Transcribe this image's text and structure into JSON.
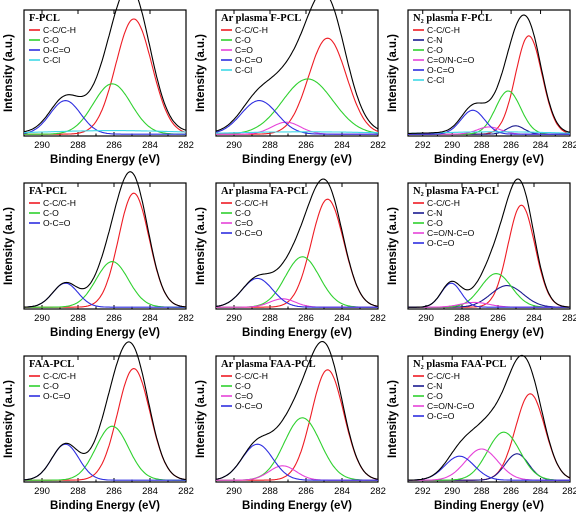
{
  "colors": {
    "total": "#000000",
    "C-C/C-H": "#ee1c24",
    "C-N": "#1a1a8f",
    "C-O": "#2fd12f",
    "C=O": "#e642d8",
    "C=O/N-C=O": "#e642d8",
    "O-C=O": "#2f2fe0",
    "C-Cl": "#3fd9e6"
  },
  "chart_data": [
    {
      "type": "line",
      "title": "F-PCL",
      "xlabel": "Binding Energy (eV)",
      "ylabel": "Intensity (a.u.)",
      "xlim": [
        291,
        282
      ],
      "xticks": [
        290,
        288,
        286,
        284,
        282
      ],
      "ylim": [
        0,
        1
      ],
      "legend_position": "top-left",
      "series": [
        {
          "name": "C-C/C-H",
          "center": 284.9,
          "height": 0.96,
          "width": 1.0
        },
        {
          "name": "C-O",
          "center": 286.1,
          "height": 0.42,
          "width": 1.05
        },
        {
          "name": "O-C=O",
          "center": 288.7,
          "height": 0.28,
          "width": 0.85
        },
        {
          "name": "C-Cl",
          "center": 286.0,
          "height": 0.03,
          "width": 4.0
        }
      ]
    },
    {
      "type": "line",
      "title": "Ar plasma F-PCL",
      "xlabel": "Binding Energy (eV)",
      "ylabel": "Intensity (a.u.)",
      "xlim": [
        291,
        282
      ],
      "xticks": [
        290,
        288,
        286,
        284,
        282
      ],
      "ylim": [
        0,
        1
      ],
      "legend_position": "top-left",
      "series": [
        {
          "name": "C-C/C-H",
          "center": 284.8,
          "height": 0.8,
          "width": 1.05
        },
        {
          "name": "C-O",
          "center": 285.9,
          "height": 0.46,
          "width": 1.4
        },
        {
          "name": "C=O",
          "center": 287.1,
          "height": 0.1,
          "width": 0.8
        },
        {
          "name": "O-C=O",
          "center": 288.6,
          "height": 0.28,
          "width": 1.0
        },
        {
          "name": "C-Cl",
          "center": 286.0,
          "height": 0.02,
          "width": 4.0
        }
      ]
    },
    {
      "type": "line",
      "title": "N₂ plasma F-PCL",
      "xlabel": "Binding Energy (eV)",
      "ylabel": "Intensity (a.u.)",
      "xlim": [
        293,
        282
      ],
      "xticks": [
        292,
        290,
        288,
        286,
        284,
        282
      ],
      "ylim": [
        0,
        1
      ],
      "legend_position": "top-left",
      "series": [
        {
          "name": "C-C/C-H",
          "center": 284.8,
          "height": 0.82,
          "width": 0.9
        },
        {
          "name": "C-N",
          "center": 285.7,
          "height": 0.07,
          "width": 0.6
        },
        {
          "name": "C-O",
          "center": 286.2,
          "height": 0.36,
          "width": 0.85
        },
        {
          "name": "C=O/N-C=O",
          "center": 287.5,
          "height": 0.06,
          "width": 0.8
        },
        {
          "name": "O-C=O",
          "center": 288.6,
          "height": 0.2,
          "width": 0.8
        },
        {
          "name": "C-Cl",
          "center": 287.0,
          "height": 0.02,
          "width": 4.0
        }
      ]
    },
    {
      "type": "line",
      "title": "FA-PCL",
      "xlabel": "Binding Energy (eV)",
      "ylabel": "Intensity (a.u.)",
      "xlim": [
        291,
        282
      ],
      "xticks": [
        290,
        288,
        286,
        284,
        282
      ],
      "ylim": [
        0,
        1
      ],
      "legend_position": "top-left",
      "series": [
        {
          "name": "C-C/C-H",
          "center": 284.9,
          "height": 0.95,
          "width": 0.85
        },
        {
          "name": "C-O",
          "center": 286.1,
          "height": 0.38,
          "width": 0.9
        },
        {
          "name": "O-C=O",
          "center": 288.7,
          "height": 0.2,
          "width": 0.7
        }
      ]
    },
    {
      "type": "line",
      "title": "Ar plasma FA-PCL",
      "xlabel": "Binding Energy (eV)",
      "ylabel": "Intensity (a.u.)",
      "xlim": [
        291,
        282
      ],
      "xticks": [
        290,
        288,
        286,
        284,
        282
      ],
      "ylim": [
        0,
        1
      ],
      "legend_position": "top-left",
      "series": [
        {
          "name": "C-C/C-H",
          "center": 284.8,
          "height": 0.9,
          "width": 0.9
        },
        {
          "name": "C-O",
          "center": 286.2,
          "height": 0.42,
          "width": 0.95
        },
        {
          "name": "C=O",
          "center": 287.3,
          "height": 0.07,
          "width": 0.7
        },
        {
          "name": "O-C=O",
          "center": 288.7,
          "height": 0.24,
          "width": 0.85
        }
      ]
    },
    {
      "type": "line",
      "title": "N₂ plasma FA-PCL",
      "xlabel": "Binding Energy (eV)",
      "ylabel": "Intensity (a.u.)",
      "xlim": [
        291,
        282
      ],
      "xticks": [
        290,
        288,
        286,
        284,
        282
      ],
      "ylim": [
        0,
        1
      ],
      "legend_position": "top-left",
      "series": [
        {
          "name": "C-C/C-H",
          "center": 284.7,
          "height": 0.85,
          "width": 0.75
        },
        {
          "name": "C-N",
          "center": 285.5,
          "height": 0.18,
          "width": 0.9
        },
        {
          "name": "C-O",
          "center": 286.1,
          "height": 0.28,
          "width": 0.85
        },
        {
          "name": "C=O/N-C=O",
          "center": 287.3,
          "height": 0.04,
          "width": 0.8
        },
        {
          "name": "O-C=O",
          "center": 288.6,
          "height": 0.2,
          "width": 0.55
        }
      ]
    },
    {
      "type": "line",
      "title": "FAA-PCL",
      "xlabel": "Binding Energy (eV)",
      "ylabel": "Intensity (a.u.)",
      "xlim": [
        291,
        282
      ],
      "xticks": [
        290,
        288,
        286,
        284,
        282
      ],
      "ylim": [
        0,
        1
      ],
      "legend_position": "top-left",
      "series": [
        {
          "name": "C-C/C-H",
          "center": 284.9,
          "height": 0.93,
          "width": 0.9
        },
        {
          "name": "C-O",
          "center": 286.1,
          "height": 0.45,
          "width": 0.9
        },
        {
          "name": "O-C=O",
          "center": 288.7,
          "height": 0.3,
          "width": 0.75
        }
      ]
    },
    {
      "type": "line",
      "title": "Ar plasma FAA-PCL",
      "xlabel": "Binding Energy (eV)",
      "ylabel": "Intensity (a.u.)",
      "xlim": [
        291,
        282
      ],
      "xticks": [
        290,
        288,
        286,
        284,
        282
      ],
      "ylim": [
        0,
        1
      ],
      "legend_position": "top-left",
      "series": [
        {
          "name": "C-C/C-H",
          "center": 284.8,
          "height": 0.92,
          "width": 0.9
        },
        {
          "name": "C-O",
          "center": 286.2,
          "height": 0.52,
          "width": 1.0
        },
        {
          "name": "C=O",
          "center": 287.3,
          "height": 0.12,
          "width": 0.75
        },
        {
          "name": "O-C=O",
          "center": 288.7,
          "height": 0.3,
          "width": 0.85
        }
      ]
    },
    {
      "type": "line",
      "title": "N₂ plasma FAA-PCL",
      "xlabel": "Binding Energy (eV)",
      "ylabel": "Intensity (a.u.)",
      "xlim": [
        293,
        282
      ],
      "xticks": [
        292,
        290,
        288,
        286,
        284,
        282
      ],
      "ylim": [
        0,
        1
      ],
      "legend_position": "top-left",
      "series": [
        {
          "name": "C-C/C-H",
          "center": 284.7,
          "height": 0.72,
          "width": 1.0
        },
        {
          "name": "C-N",
          "center": 285.6,
          "height": 0.22,
          "width": 0.8
        },
        {
          "name": "C-O",
          "center": 286.5,
          "height": 0.4,
          "width": 1.1
        },
        {
          "name": "C=O/N-C=O",
          "center": 288.0,
          "height": 0.26,
          "width": 1.1
        },
        {
          "name": "O-C=O",
          "center": 289.5,
          "height": 0.2,
          "width": 1.0
        }
      ]
    }
  ]
}
